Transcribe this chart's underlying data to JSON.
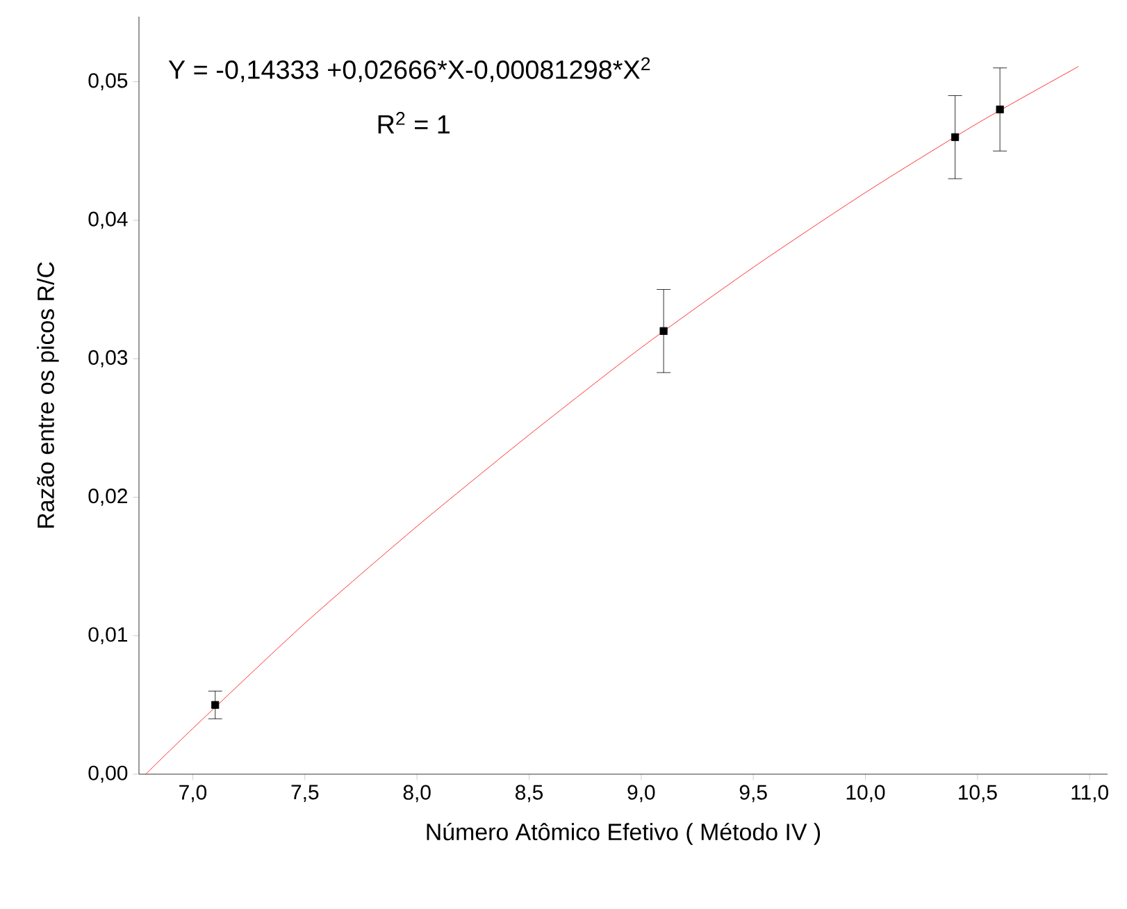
{
  "chart_data": {
    "type": "scatter",
    "xlabel": "Número Atômico Efetivo ( Método IV )",
    "ylabel": "Razão entre os picos R/C",
    "annotations": [
      "Y = -0,14333 +0,02666*X-0,00081298*X$^{2}$",
      "R$^{2}$ = 1"
    ],
    "xlim": [
      6.76,
      11.08
    ],
    "ylim": [
      0,
      0.0547
    ],
    "xticks": [
      {
        "value": 7.0,
        "label": "7,0"
      },
      {
        "value": 7.5,
        "label": "7,5"
      },
      {
        "value": 8.0,
        "label": "8,0"
      },
      {
        "value": 8.5,
        "label": "8,5"
      },
      {
        "value": 9.0,
        "label": "9,0"
      },
      {
        "value": 9.5,
        "label": "9,5"
      },
      {
        "value": 10.0,
        "label": "10,0"
      },
      {
        "value": 10.5,
        "label": "10,5"
      },
      {
        "value": 11.0,
        "label": "11,0"
      }
    ],
    "yticks": [
      {
        "value": 0,
        "label": "0,00"
      },
      {
        "value": 0.01,
        "label": "0,01"
      },
      {
        "value": 0.02,
        "label": "0,02"
      },
      {
        "value": 0.03,
        "label": "0,03"
      },
      {
        "value": 0.04,
        "label": "0,04"
      },
      {
        "value": 0.05,
        "label": "0,05"
      }
    ],
    "grid": false,
    "series": [
      {
        "color": "#000000",
        "marker": "square",
        "x": [
          7.1,
          9.1,
          10.4,
          10.6
        ],
        "values": [
          0.005,
          0.032,
          0.046,
          0.048
        ],
        "errors": [
          0.001,
          0.003,
          0.003,
          0.003
        ]
      },
      {
        "type": "line",
        "color": "#ff0000",
        "marker": "none",
        "line_style": "solid",
        "x": [
          6.79,
          7.0,
          7.5,
          8.0,
          8.5,
          9.0,
          9.5,
          10.0,
          10.5,
          10.95
        ],
        "values": [
          0.0,
          0.0033,
          0.0109,
          0.0179,
          0.0245,
          0.0308,
          0.0366,
          0.042,
          0.047,
          0.0511
        ]
      }
    ]
  }
}
